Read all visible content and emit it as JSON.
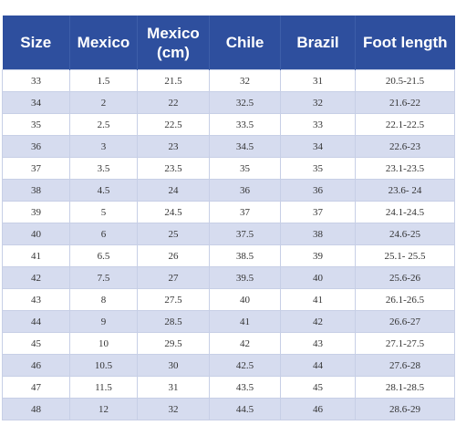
{
  "table": {
    "headers": [
      "Size",
      "Mexico",
      "Mexico\n(cm)",
      "Chile",
      "Brazil",
      "Foot length"
    ],
    "rows": [
      [
        "33",
        "1.5",
        "21.5",
        "32",
        "31",
        "20.5-21.5"
      ],
      [
        "34",
        "2",
        "22",
        "32.5",
        "32",
        "21.6-22"
      ],
      [
        "35",
        "2.5",
        "22.5",
        "33.5",
        "33",
        "22.1-22.5"
      ],
      [
        "36",
        "3",
        "23",
        "34.5",
        "34",
        "22.6-23"
      ],
      [
        "37",
        "3.5",
        "23.5",
        "35",
        "35",
        "23.1-23.5"
      ],
      [
        "38",
        "4.5",
        "24",
        "36",
        "36",
        "23.6- 24"
      ],
      [
        "39",
        "5",
        "24.5",
        "37",
        "37",
        "24.1-24.5"
      ],
      [
        "40",
        "6",
        "25",
        "37.5",
        "38",
        "24.6-25"
      ],
      [
        "41",
        "6.5",
        "26",
        "38.5",
        "39",
        "25.1- 25.5"
      ],
      [
        "42",
        "7.5",
        "27",
        "39.5",
        "40",
        "25.6-26"
      ],
      [
        "43",
        "8",
        "27.5",
        "40",
        "41",
        "26.1-26.5"
      ],
      [
        "44",
        "9",
        "28.5",
        "41",
        "42",
        "26.6-27"
      ],
      [
        "45",
        "10",
        "29.5",
        "42",
        "43",
        "27.1-27.5"
      ],
      [
        "46",
        "10.5",
        "30",
        "42.5",
        "44",
        "27.6-28"
      ],
      [
        "47",
        "11.5",
        "31",
        "43.5",
        "45",
        "28.1-28.5"
      ],
      [
        "48",
        "12",
        "32",
        "44.5",
        "46",
        "28.6-29"
      ]
    ]
  },
  "colors": {
    "header_bg": "#2e4f9e",
    "header_text": "#ffffff",
    "row_alt_bg": "#d6dcef",
    "row_bg": "#ffffff",
    "border": "#c7cfe6"
  }
}
